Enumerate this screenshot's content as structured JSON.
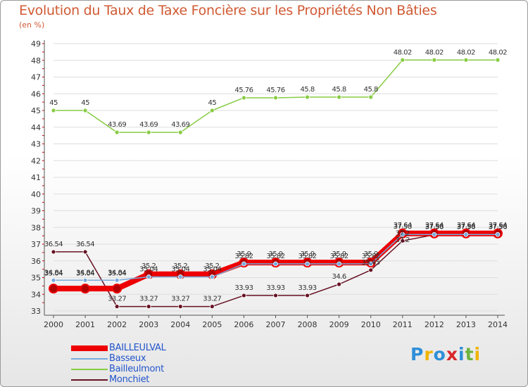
{
  "title": "Evolution du Taux de Taxe Foncière sur les Propriétés Non Bâties",
  "unit_label": "(en %)",
  "logo": {
    "text": "Proxiti",
    "colors": [
      "#2e8fd8",
      "#f0b400",
      "#2e8fd8",
      "#d9262a",
      "#2e8fd8",
      "#6cb33e",
      "#f0b400"
    ]
  },
  "colors": {
    "grid": "#dddddd",
    "tick_marks": "#cc0000",
    "axis": "#555555"
  },
  "chart_data": {
    "type": "line",
    "title": "Evolution du Taux de Taxe Foncière sur les Propriétés Non Bâties",
    "ylabel": "(en %)",
    "xlabel": "",
    "ylim": [
      33,
      49
    ],
    "yticks": [
      33,
      34,
      35,
      36,
      37,
      38,
      39,
      40,
      41,
      42,
      43,
      44,
      45,
      46,
      47,
      48,
      49
    ],
    "grid": "horizontal",
    "legend_position": "bottom-left",
    "x": [
      "2000",
      "2001",
      "2002",
      "2003",
      "2004",
      "2005",
      "2006",
      "2007",
      "2008",
      "2009",
      "2010",
      "2011",
      "2012",
      "2013",
      "2014"
    ],
    "series": [
      {
        "name": "BAILLEULVAL",
        "color": "#ee0000",
        "values": [
          34.34,
          34.34,
          34.34,
          35.2,
          35.2,
          35.2,
          35.9,
          35.9,
          35.9,
          35.9,
          35.9,
          37.64,
          37.64,
          37.64,
          37.64
        ],
        "labels": [
          "",
          "",
          "",
          "35.2",
          "35.2",
          "35.2",
          "35.9",
          "35.9",
          "35.9",
          "35.9",
          "35.9",
          "37.64",
          "37.64",
          "37.64",
          "37.64"
        ]
      },
      {
        "name": "Basseux",
        "color": "#77aadd",
        "values": [
          34.84,
          34.84,
          34.84,
          35.04,
          35.04,
          35.04,
          35.82,
          35.82,
          35.82,
          35.82,
          35.82,
          37.58,
          37.58,
          37.58,
          37.58
        ],
        "labels": [
          "34.84",
          "34.84",
          "34.84",
          "35.04",
          "35.04",
          "35.04",
          "35.82",
          "35.82",
          "35.82",
          "35.82",
          "35.82",
          "37.58",
          "37.58",
          "37.58",
          "37.58"
        ]
      },
      {
        "name": "Bailleulmont",
        "color": "#88cc44",
        "values": [
          45,
          45,
          43.69,
          43.69,
          43.69,
          45,
          45.76,
          45.76,
          45.8,
          45.8,
          45.8,
          48.02,
          48.02,
          48.02,
          48.02
        ],
        "labels": [
          "45",
          "45",
          "43.69",
          "43.69",
          "43.69",
          "45",
          "45.76",
          "45.76",
          "45.8",
          "45.8",
          "45.8",
          "48.02",
          "48.02",
          "48.02",
          "48.02"
        ]
      },
      {
        "name": "Monchiet",
        "color": "#661122",
        "values": [
          36.54,
          36.54,
          33.27,
          33.27,
          33.27,
          33.27,
          33.93,
          33.93,
          33.93,
          34.6,
          35.45,
          37.2,
          37.56,
          37.56,
          37.56
        ],
        "labels": [
          "36.54",
          "36.54",
          "33.27",
          "33.27",
          "33.27",
          "33.27",
          "33.93",
          "33.93",
          "33.93",
          "34.6",
          "35.45",
          "37.2",
          "37.56",
          "37.56",
          "37.56"
        ]
      }
    ],
    "extra_labels": [
      "35.04",
      "35.04",
      "35.04",
      "",
      "",
      "",
      "",
      "",
      "",
      "",
      "",
      "37.2",
      "",
      "",
      ""
    ]
  }
}
